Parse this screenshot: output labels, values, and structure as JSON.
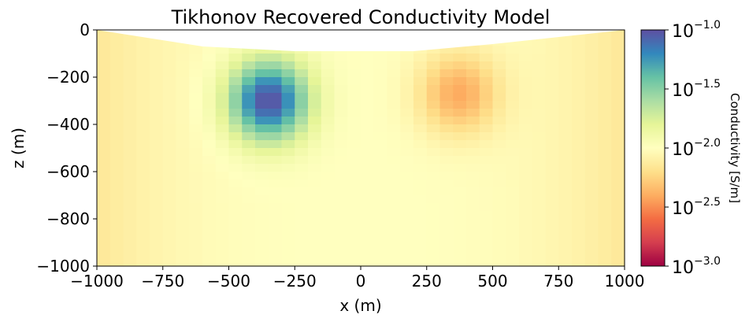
{
  "chart_data": {
    "type": "heatmap",
    "title": "Tikhonov Recovered Conductivity Model",
    "xlabel": "x (m)",
    "ylabel": "z (m)",
    "xlim": [
      -1000,
      1000
    ],
    "ylim": [
      -1000,
      0
    ],
    "x_ticks": [
      "−1000",
      "−750",
      "−500",
      "−250",
      "0",
      "250",
      "500",
      "750",
      "1000"
    ],
    "x_tick_values": [
      -1000,
      -750,
      -500,
      -250,
      0,
      250,
      500,
      750,
      1000
    ],
    "y_ticks": [
      "0",
      "−200",
      "−400",
      "−600",
      "−800",
      "−1000"
    ],
    "y_tick_values": [
      0,
      -200,
      -400,
      -600,
      -800,
      -1000
    ],
    "colorbar": {
      "label": "Conductivity [S/m]",
      "scale": "log",
      "range": [
        0.001,
        0.1
      ],
      "tick_base": "10",
      "tick_exponents": [
        "−1.0",
        "−1.5",
        "−2.0",
        "−2.5",
        "−3.0"
      ],
      "tick_values": [
        -1.0,
        -1.5,
        -2.0,
        -2.5,
        -3.0
      ],
      "colormap": "Spectral",
      "colormap_stops": [
        "#9e0142",
        "#d53e4f",
        "#f46d43",
        "#fdae61",
        "#fee08b",
        "#ffffbf",
        "#e6f598",
        "#abdda4",
        "#66c2a5",
        "#3288bd",
        "#5e4fa2"
      ]
    },
    "background_log10_conductivity": -2.0,
    "bodies": [
      {
        "x_center": -350,
        "z_center": -300,
        "peak_log10_conductivity": -1.0,
        "type": "conductive"
      },
      {
        "x_center": 370,
        "z_center": -270,
        "peak_log10_conductivity": -2.4,
        "type": "resistive"
      }
    ],
    "topography": [
      {
        "x": -1000,
        "z": 0
      },
      {
        "x": -600,
        "z": -70
      },
      {
        "x": -250,
        "z": -90
      },
      {
        "x": 200,
        "z": -90
      },
      {
        "x": 500,
        "z": -60
      },
      {
        "x": 1000,
        "z": 0
      }
    ]
  }
}
